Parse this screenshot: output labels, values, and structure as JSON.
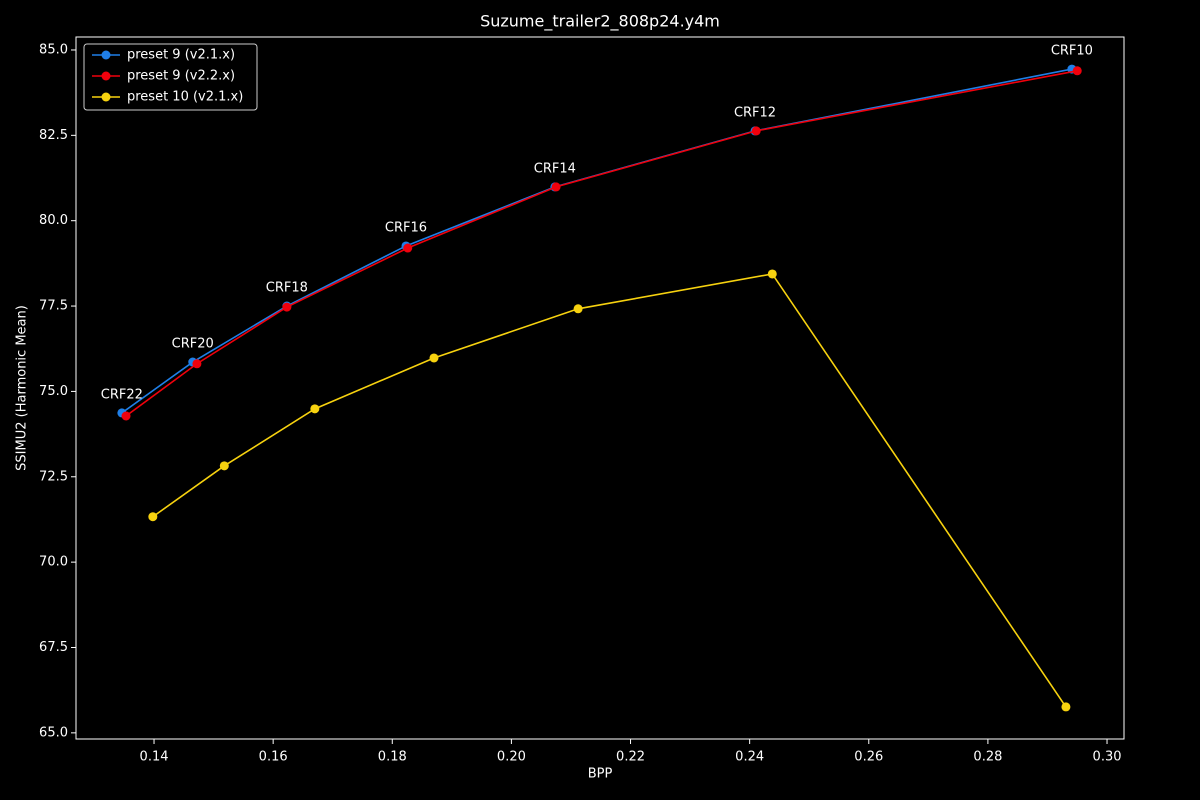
{
  "chart_data": {
    "type": "line",
    "title": "Suzume_trailer2_808p24.y4m",
    "x_label": "BPP",
    "y_label": "SSIMU2 (Harmonic Mean)",
    "xlim": [
      0.1269,
      0.30285
    ],
    "ylim": [
      64.82,
      85.38
    ],
    "xticks": [
      0.14,
      0.16,
      0.18,
      {
        "value": 0.2,
        "label": "0.20"
      },
      0.22,
      0.24,
      0.26,
      0.28,
      {
        "value": 0.3,
        "label": "0.30"
      }
    ],
    "yticks": [
      {
        "value": 65,
        "label": "65.0"
      },
      67.5,
      {
        "value": 70,
        "label": "70.0"
      },
      72.5,
      {
        "value": 75,
        "label": "75.0"
      },
      77.5,
      {
        "value": 80,
        "label": "80.0"
      },
      82.5,
      {
        "value": 85,
        "label": "85.0"
      }
    ],
    "legend": "upper left",
    "series": [
      {
        "name": "preset 9 (v2.1.x)",
        "color": "#1f7fe8",
        "x": [
          0.1346,
          0.1465,
          0.1623,
          0.1823,
          0.2073,
          0.2409,
          0.2941
        ],
        "values": [
          74.37,
          75.86,
          77.5,
          79.26,
          80.99,
          82.63,
          84.44
        ]
      },
      {
        "name": "preset 9 (v2.2.x)",
        "color": "#f0000c",
        "x": [
          0.1353,
          0.1472,
          0.1623,
          0.1826,
          0.2075,
          0.2411,
          0.295
        ],
        "values": [
          74.28,
          75.81,
          77.47,
          79.2,
          80.99,
          82.63,
          84.39
        ]
      },
      {
        "name": "preset 10 (v2.1.x)",
        "color": "#f7d20f",
        "x": [
          0.1398,
          0.1518,
          0.167,
          0.187,
          0.2112,
          0.2438,
          0.2931
        ],
        "values": [
          71.33,
          72.82,
          74.49,
          75.98,
          77.42,
          78.44,
          65.76
        ]
      }
    ],
    "annotations": [
      "CRF22",
      "CRF20",
      "CRF18",
      "CRF16",
      "CRF14",
      "CRF12",
      "CRF10"
    ]
  }
}
